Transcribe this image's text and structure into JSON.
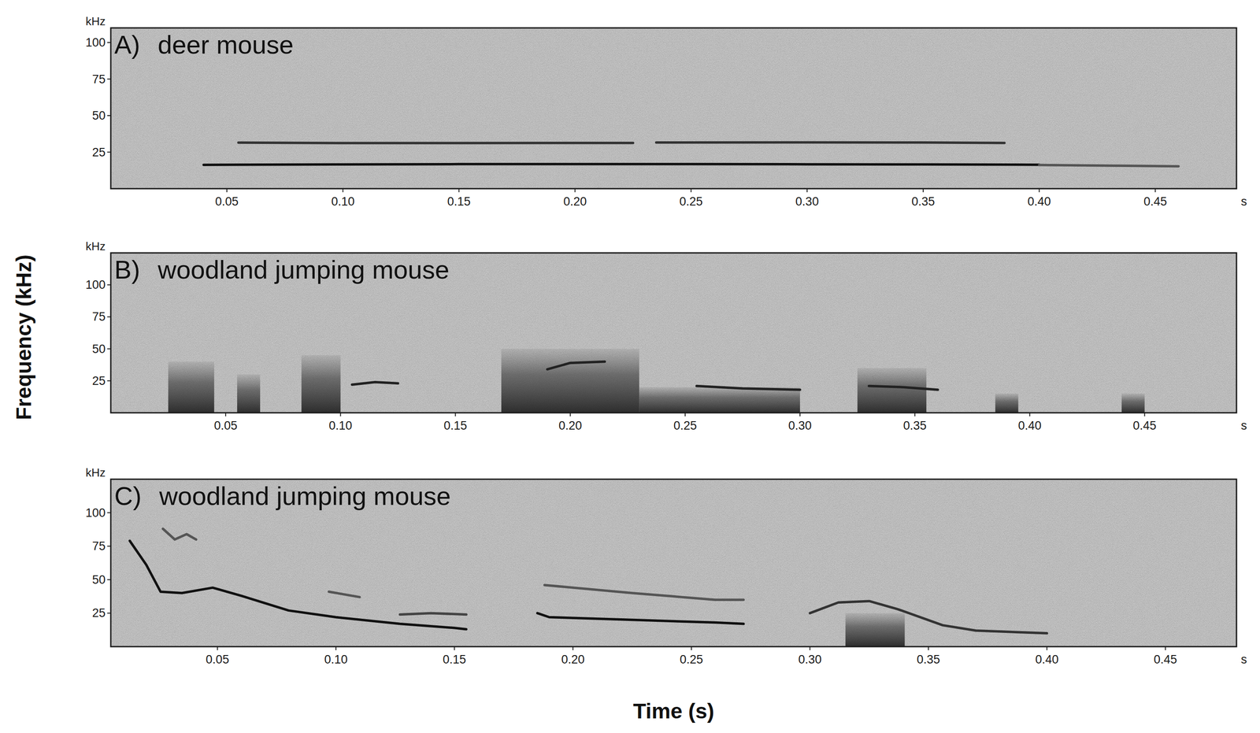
{
  "figure": {
    "x_label": "Time (s)",
    "y_label": "Frequency (kHz)"
  },
  "chart_data": [
    {
      "type": "spectrogram",
      "panel": "A)",
      "title": "deer mouse",
      "x_unit": "s",
      "y_unit": "kHz",
      "xlim": [
        0,
        0.485
      ],
      "ylim": [
        0,
        110
      ],
      "xticks": [
        0.05,
        {
          "value": 0.1,
          "label": "0.10"
        },
        0.15,
        {
          "value": 0.2,
          "label": "0.20"
        },
        0.25,
        {
          "value": 0.3,
          "label": "0.30"
        },
        0.35,
        {
          "value": 0.4,
          "label": "0.40"
        },
        0.45
      ],
      "yticks": [
        25,
        50,
        75,
        100
      ],
      "series": [
        {
          "color": "#111111",
          "x": [
            0.04,
            0.1,
            0.15,
            0.2,
            0.25,
            0.3,
            0.35,
            0.4
          ],
          "values": [
            16.3,
            16.6,
            16.8,
            16.8,
            16.8,
            16.7,
            16.6,
            16.4
          ]
        },
        {
          "color": "#555555",
          "x": [
            0.4,
            0.43,
            0.46
          ],
          "values": [
            16.2,
            15.8,
            15.3
          ]
        },
        {
          "color": "#333333",
          "x": [
            0.055,
            0.1,
            0.15,
            0.2,
            0.225
          ],
          "values": [
            31.5,
            31.2,
            31.2,
            31.3,
            31.3
          ]
        },
        {
          "color": "#333333",
          "x": [
            0.235,
            0.3,
            0.35,
            0.385
          ],
          "values": [
            31.6,
            31.7,
            31.6,
            31.3
          ]
        }
      ]
    },
    {
      "type": "spectrogram",
      "panel": "B)",
      "title": "woodland jumping mouse",
      "x_unit": "s",
      "y_unit": "kHz",
      "xlim": [
        0,
        0.49
      ],
      "ylim": [
        0,
        125
      ],
      "xticks": [
        0.05,
        {
          "value": 0.1,
          "label": "0.10"
        },
        0.15,
        {
          "value": 0.2,
          "label": "0.20"
        },
        0.25,
        {
          "value": 0.3,
          "label": "0.30"
        },
        0.35,
        {
          "value": 0.4,
          "label": "0.40"
        },
        0.45
      ],
      "yticks": [
        25,
        50,
        75,
        100
      ],
      "bursts": {
        "x0": [
          0.025,
          0.055,
          0.083,
          0.17,
          0.23,
          0.325,
          0.385,
          0.44
        ],
        "x1": [
          0.045,
          0.065,
          0.1,
          0.23,
          0.3,
          0.355,
          0.395,
          0.45
        ],
        "values": [
          40,
          30,
          45,
          50,
          20,
          35,
          15,
          15
        ]
      },
      "series": [
        {
          "color": "#222222",
          "x": [
            0.105,
            0.115,
            0.125
          ],
          "values": [
            22,
            24,
            23
          ]
        },
        {
          "color": "#222222",
          "x": [
            0.19,
            0.2,
            0.215
          ],
          "values": [
            34,
            39,
            40
          ]
        },
        {
          "color": "#222222",
          "x": [
            0.255,
            0.275,
            0.3
          ],
          "values": [
            21,
            19,
            18
          ]
        },
        {
          "color": "#222222",
          "x": [
            0.33,
            0.345,
            0.36
          ],
          "values": [
            21,
            20,
            18
          ]
        }
      ]
    },
    {
      "type": "spectrogram",
      "panel": "C)",
      "title": "woodland jumping mouse",
      "x_unit": "s",
      "y_unit": "kHz",
      "xlim": [
        0.005,
        0.48
      ],
      "ylim": [
        0,
        125
      ],
      "xticks": [
        0.05,
        {
          "value": 0.1,
          "label": "0.10"
        },
        0.15,
        {
          "value": 0.2,
          "label": "0.20"
        },
        0.25,
        {
          "value": 0.3,
          "label": "0.30"
        },
        0.35,
        {
          "value": 0.4,
          "label": "0.40"
        },
        0.45
      ],
      "yticks": [
        25,
        50,
        75,
        100
      ],
      "bursts": {
        "x0": [
          0.315
        ],
        "x1": [
          0.34
        ],
        "values": [
          25
        ]
      },
      "series": [
        {
          "color": "#111111",
          "x": [
            0.013,
            0.02,
            0.026,
            0.035,
            0.048,
            0.06,
            0.08,
            0.1,
            0.127,
            0.15,
            0.155
          ],
          "values": [
            79,
            61,
            41,
            40,
            44,
            38,
            27,
            22,
            17,
            14,
            13
          ]
        },
        {
          "color": "#555555",
          "x": [
            0.027,
            0.032,
            0.037,
            0.041
          ],
          "values": [
            88,
            80,
            84,
            80
          ]
        },
        {
          "color": "#555555",
          "x": [
            0.097,
            0.11
          ],
          "values": [
            41,
            37
          ]
        },
        {
          "color": "#444444",
          "x": [
            0.127,
            0.14,
            0.155
          ],
          "values": [
            24,
            25,
            24
          ]
        },
        {
          "color": "#111111",
          "x": [
            0.185,
            0.19,
            0.225,
            0.26,
            0.272
          ],
          "values": [
            25,
            22,
            20,
            18,
            17
          ]
        },
        {
          "color": "#555555",
          "x": [
            0.188,
            0.225,
            0.26,
            0.272
          ],
          "values": [
            46,
            40,
            35,
            35
          ]
        },
        {
          "color": "#333333",
          "x": [
            0.3,
            0.312,
            0.325,
            0.337,
            0.356,
            0.37,
            0.4
          ],
          "values": [
            25,
            33,
            34,
            28,
            16,
            12,
            10
          ]
        }
      ]
    }
  ]
}
